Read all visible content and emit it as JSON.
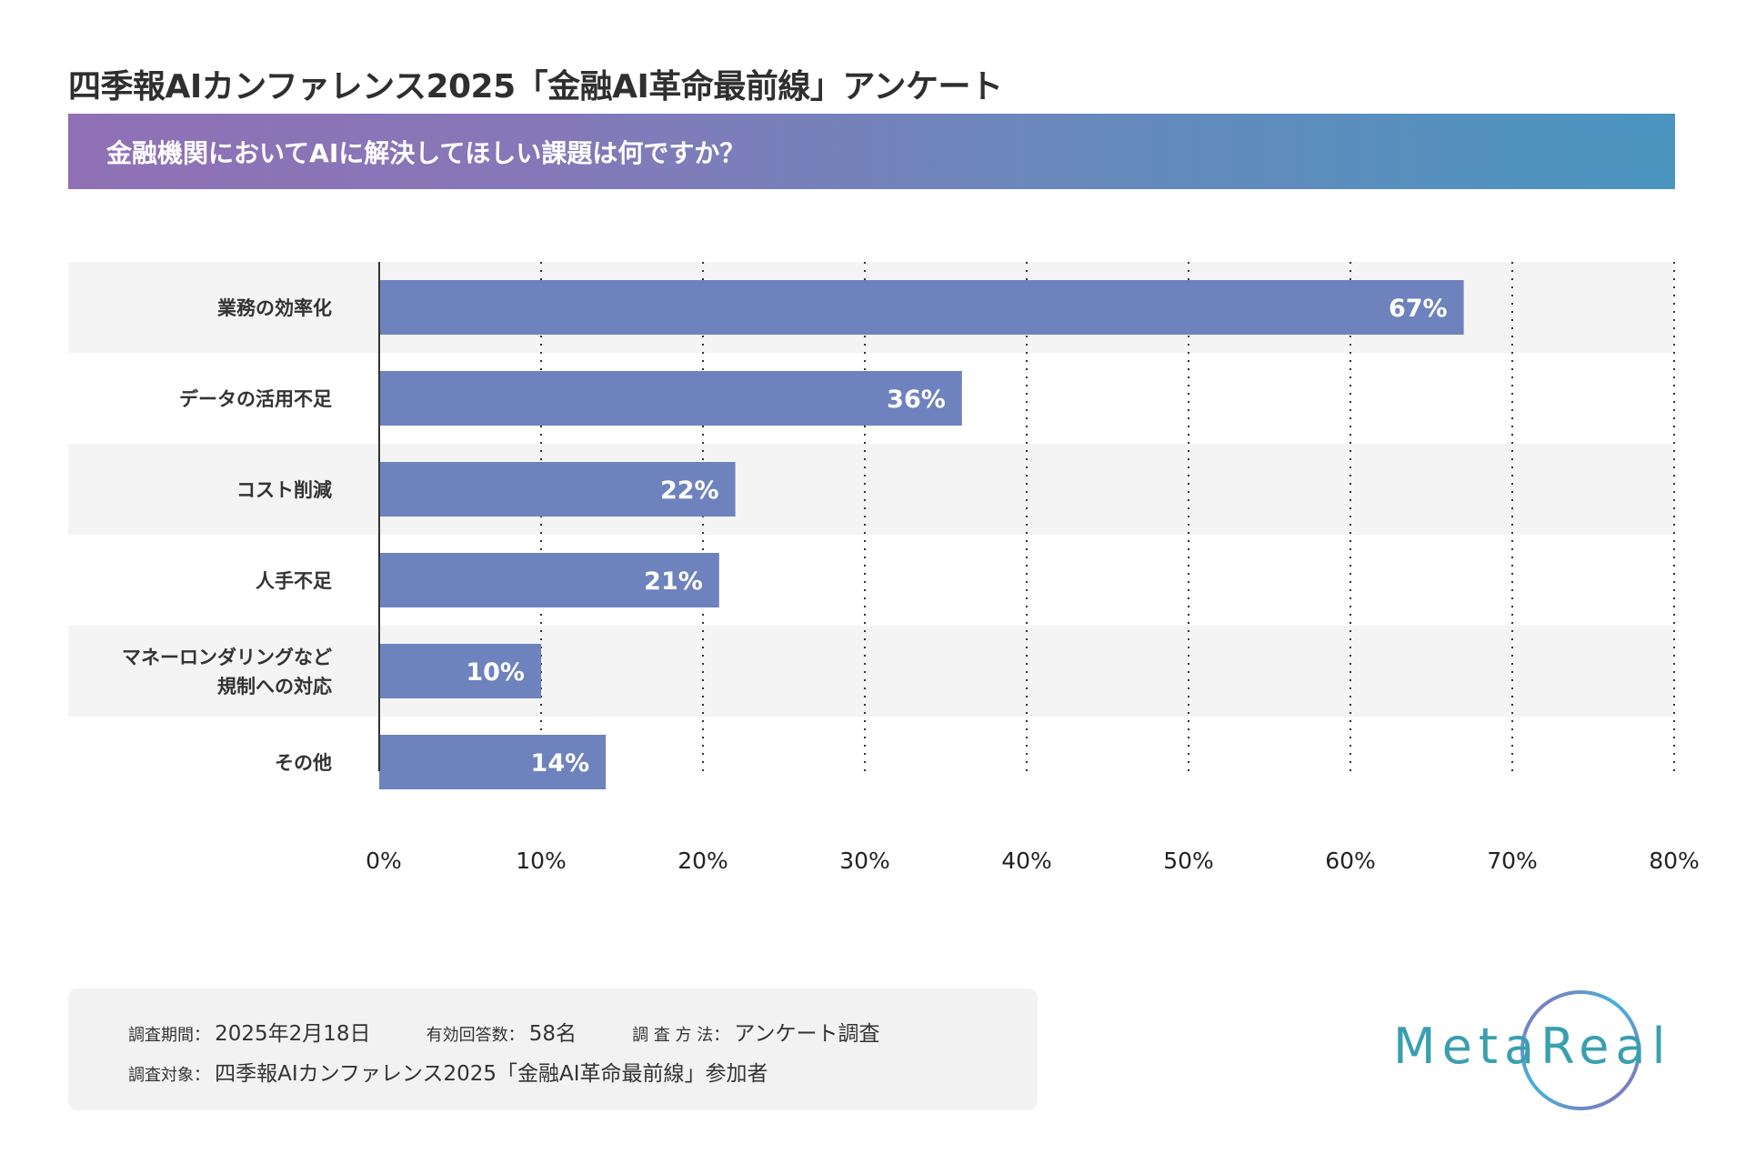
{
  "header": {
    "title": "四季報AIカンファレンス2025「金融AI革命最前線」アンケート",
    "question": "金融機関においてAIに解決してほしい課題は何ですか？"
  },
  "colors": {
    "bar": "#6e82bd",
    "band_start": "#9070b5",
    "band_end": "#4a95c0",
    "row_stripe": "#f4f4f4",
    "logo": "#3a9fb0"
  },
  "chart_data": {
    "type": "bar",
    "orientation": "horizontal",
    "title": "金融機関においてAIに解決してほしい課題は何ですか？",
    "categories": [
      "業務の効率化",
      "データの活用不足",
      "コスト削減",
      "人手不足",
      "マネーロンダリングなど\n規制への対応",
      "その他"
    ],
    "category_lines": [
      [
        "業務の効率化"
      ],
      [
        "データの活用不足"
      ],
      [
        "コスト削減"
      ],
      [
        "人手不足"
      ],
      [
        "マネーロンダリングなど",
        "規制への対応"
      ],
      [
        "その他"
      ]
    ],
    "values": [
      67,
      36,
      22,
      21,
      10,
      14
    ],
    "value_labels": [
      "67%",
      "36%",
      "22%",
      "21%",
      "10%",
      "14%"
    ],
    "xlabel": "",
    "ylabel": "",
    "xlim": [
      0,
      80
    ],
    "xticks": [
      0,
      10,
      20,
      30,
      40,
      50,
      60,
      70,
      80
    ],
    "xtick_labels": [
      "0%",
      "10%",
      "20%",
      "30%",
      "40%",
      "50%",
      "60%",
      "70%",
      "80%"
    ],
    "grid": "vertical-dotted",
    "legend": "none",
    "unit": "%"
  },
  "footer": {
    "period_label": "調査期間：",
    "period_value": "2025年2月18日",
    "responses_label": "有効回答数：",
    "responses_value": "58名",
    "method_label": "調 査 方 法：",
    "method_value": "アンケート調査",
    "target_label": "調査対象：",
    "target_value": "四季報AIカンファレンス2025「金融AI革命最前線」参加者"
  },
  "logo": {
    "text": "MetaReal"
  }
}
